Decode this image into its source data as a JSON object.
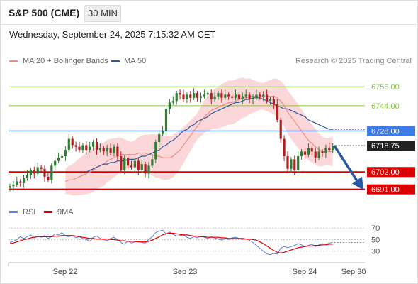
{
  "header": {
    "title": "S&P 500 (CME)",
    "timeframe": "30 MIN"
  },
  "datetime": "Wednesday, September 24, 2025 7:15:32 AM CET",
  "legend": {
    "ma20": "MA 20 + Bollinger Bands",
    "ma50": "MA 50",
    "research": "Research © 2025 Trading Central",
    "rsi": "RSI",
    "rsi_ma": "9MA"
  },
  "colors": {
    "ma20": "#f28b82",
    "ma50": "#2c5aa0",
    "bollinger": "#fbc9cc",
    "candle_up": "#2e7d32",
    "candle_down": "#b71c1c",
    "resistance": "#8bc34a",
    "pivot": "#3d7be8",
    "support": "#dd0000",
    "current": "#222222",
    "rsi": "#5c7fd6",
    "rsi_ma": "#dd0000",
    "arrow": "#2c5aa0"
  },
  "chart_data": [
    {
      "type": "candlestick",
      "title": "S&P 500 (CME) 30 MIN",
      "ylim": [
        6685,
        6766
      ],
      "x_ticks": [
        "Sep 22",
        "Sep 23",
        "Sep 24",
        "Sep 30"
      ],
      "levels": [
        {
          "label": "6756.00",
          "value": 6756.0,
          "kind": "resistance"
        },
        {
          "label": "6744.00",
          "value": 6744.0,
          "kind": "resistance"
        },
        {
          "label": "6728.00",
          "value": 6728.0,
          "kind": "pivot"
        },
        {
          "label": "6718.75",
          "value": 6718.75,
          "kind": "current"
        },
        {
          "label": "6702.00",
          "value": 6702.0,
          "kind": "support"
        },
        {
          "label": "6691.00",
          "value": 6691.0,
          "kind": "support"
        }
      ],
      "forecast": {
        "from": 6718.75,
        "to": 6691.0,
        "direction": "down"
      },
      "series": [
        {
          "name": "Price",
          "values": [
            6693,
            6694,
            6696,
            6695,
            6698,
            6700,
            6703,
            6701,
            6705,
            6704,
            6699,
            6697,
            6706,
            6709,
            6711,
            6712,
            6716,
            6723,
            6719,
            6718,
            6716,
            6719,
            6716,
            6718,
            6721,
            6716,
            6717,
            6715,
            6717,
            6714,
            6718,
            6712,
            6703,
            6711,
            6706,
            6705,
            6709,
            6703,
            6707,
            6701,
            6706,
            6710,
            6721,
            6726,
            6728,
            6742,
            6746,
            6747,
            6752,
            6751,
            6748,
            6751,
            6749,
            6752,
            6749,
            6750,
            6751,
            6752,
            6748,
            6750,
            6752,
            6749,
            6751,
            6750,
            6749,
            6751,
            6748,
            6750,
            6751,
            6748,
            6749,
            6751,
            6750,
            6751,
            6747,
            6748,
            6745,
            6735,
            6723,
            6712,
            6704,
            6710,
            6703,
            6712,
            6715,
            6713,
            6717,
            6715,
            6711,
            6715,
            6714,
            6717,
            6716,
            6718.75
          ]
        },
        {
          "name": "MA 20",
          "values": [
            6696,
            6697,
            6697,
            6698,
            6699,
            6700,
            6701,
            6702,
            6703,
            6705,
            6706,
            6707,
            6709,
            6710,
            6711,
            6712,
            6713,
            6713,
            6713,
            6713,
            6713,
            6714,
            6714,
            6714,
            6713,
            6713,
            6712,
            6712,
            6711,
            6711,
            6711,
            6712,
            6714,
            6716,
            6719,
            6722,
            6725,
            6728,
            6731,
            6734,
            6737,
            6739,
            6741,
            6742,
            6743,
            6744,
            6745,
            6746,
            6746,
            6747,
            6748,
            6749,
            6749,
            6750,
            6750,
            6750,
            6750,
            6750,
            6750,
            6750,
            6750,
            6749,
            6747,
            6744,
            6740,
            6737,
            6734,
            6731,
            6728,
            6725,
            6722,
            6720,
            6718,
            6716,
            6715,
            6715,
            6715,
            6715
          ]
        },
        {
          "name": "MA 50",
          "values": [
            6702,
            6703,
            6704,
            6705,
            6706,
            6707,
            6707,
            6708,
            6708,
            6709,
            6709,
            6709,
            6710,
            6710,
            6710,
            6711,
            6712,
            6712,
            6713,
            6714,
            6715,
            6716,
            6718,
            6719,
            6721,
            6722,
            6724,
            6726,
            6728,
            6729,
            6731,
            6732,
            6734,
            6735,
            6736,
            6737,
            6739,
            6740,
            6741,
            6742,
            6743,
            6744,
            6745,
            6746,
            6746,
            6747,
            6748,
            6748,
            6749,
            6749,
            6749,
            6748,
            6747,
            6746,
            6745,
            6744,
            6743,
            6742,
            6742,
            6741,
            6740,
            6739,
            6738,
            6737,
            6735,
            6734,
            6733,
            6732,
            6731,
            6730,
            6729,
            6729
          ]
        }
      ]
    },
    {
      "type": "line",
      "title": "RSI",
      "ylim": [
        10,
        80
      ],
      "y_ticks": [
        70,
        50,
        30
      ],
      "series": [
        {
          "name": "RSI",
          "values": [
            45,
            47,
            50,
            55,
            52,
            55,
            58,
            53,
            56,
            54,
            57,
            52,
            55,
            60,
            58,
            62,
            56,
            55,
            57,
            53,
            55,
            52,
            50,
            47,
            54,
            56,
            52,
            50,
            48,
            52,
            54,
            50,
            45,
            42,
            48,
            44,
            46,
            47,
            45,
            44,
            50,
            55,
            62,
            65,
            66,
            60,
            63,
            59,
            56,
            57,
            58,
            54,
            52,
            55,
            53,
            56,
            54,
            52,
            55,
            53,
            51,
            49,
            52,
            50,
            53,
            54,
            52,
            50,
            51,
            49,
            45,
            40,
            35,
            30,
            25,
            24,
            26,
            25,
            35,
            38,
            36,
            38,
            40,
            43,
            41,
            38,
            40,
            42,
            38,
            41,
            43,
            42,
            44,
            45
          ]
        },
        {
          "name": "9MA",
          "values": [
            43,
            44,
            46,
            48,
            50,
            51,
            53,
            54,
            55,
            55,
            55,
            55,
            55,
            56,
            56,
            57,
            57,
            57,
            57,
            56,
            55,
            54,
            53,
            52,
            52,
            51,
            51,
            51,
            51,
            50,
            50,
            49,
            48,
            48,
            47,
            47,
            47,
            46,
            46,
            46,
            47,
            49,
            52,
            55,
            58,
            60,
            61,
            61,
            60,
            59,
            58,
            58,
            57,
            56,
            56,
            55,
            55,
            54,
            54,
            54,
            54,
            53,
            53,
            52,
            52,
            52,
            52,
            52,
            51,
            51,
            50,
            49,
            46,
            43,
            39,
            35,
            31,
            28,
            27,
            28,
            30,
            32,
            34,
            36,
            37,
            38,
            39,
            39,
            40,
            40,
            41,
            41,
            42,
            42
          ]
        }
      ]
    }
  ]
}
